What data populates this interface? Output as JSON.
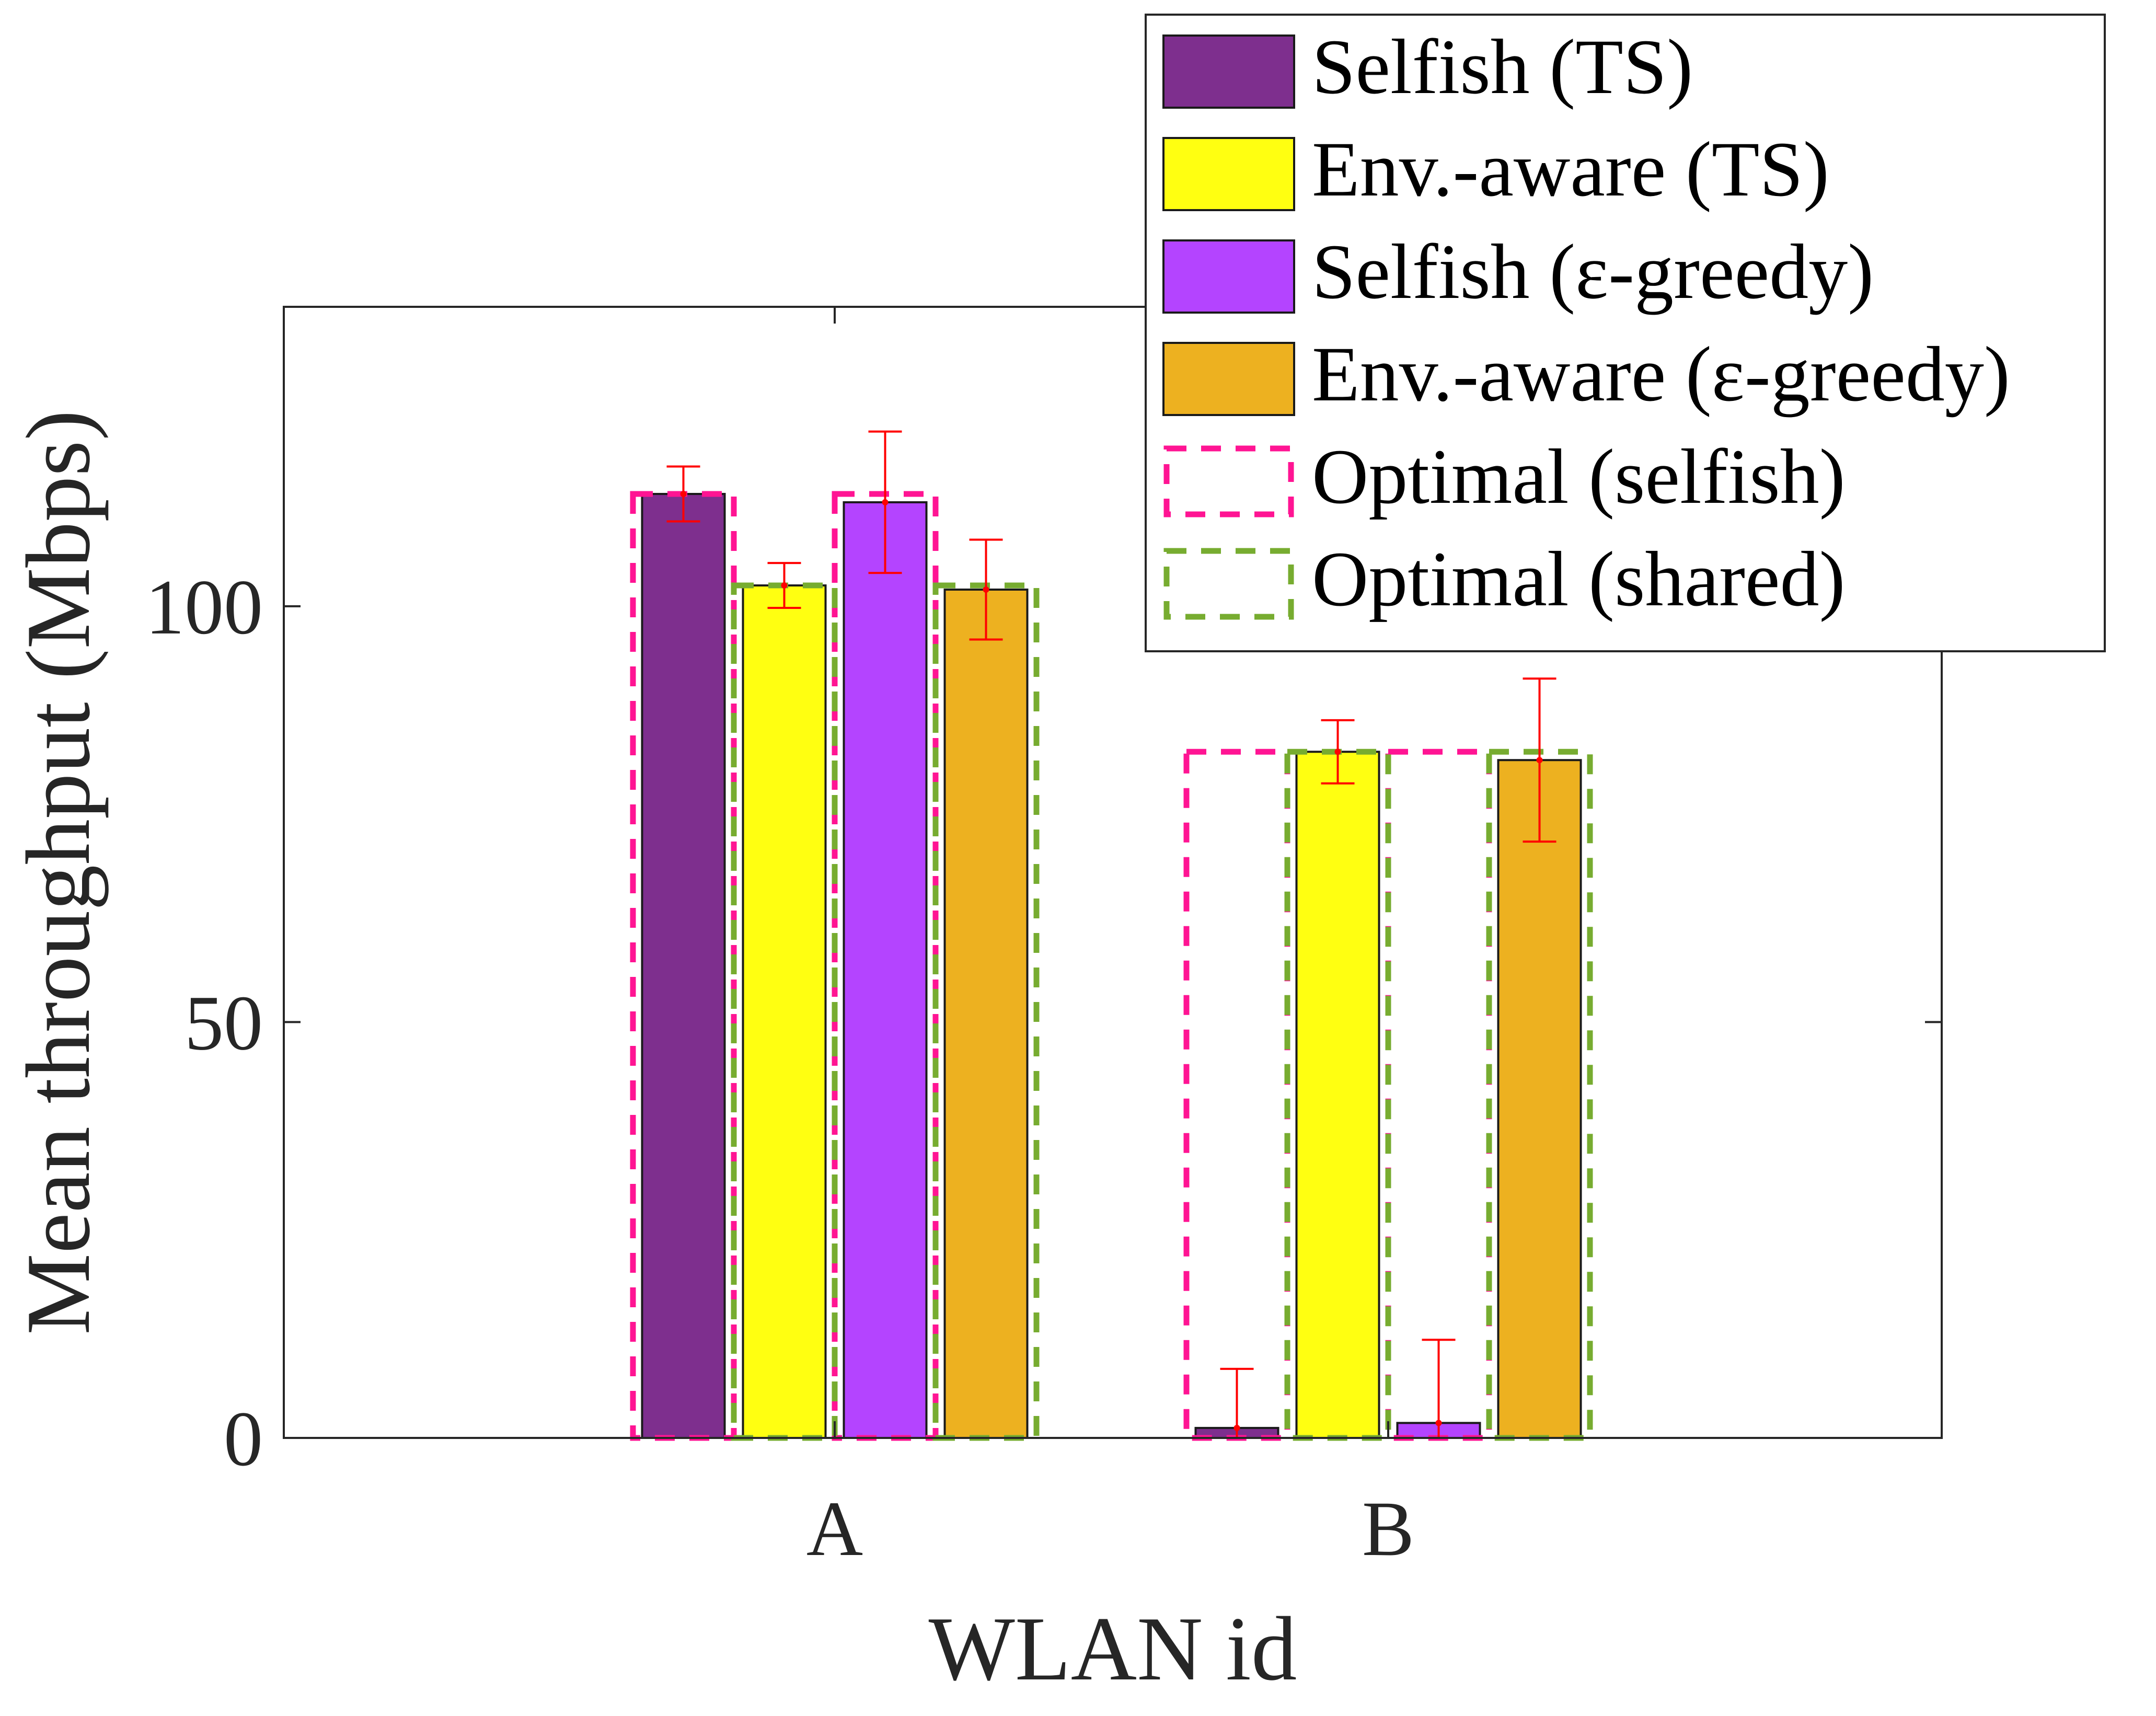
{
  "chart_data": {
    "type": "bar",
    "xlabel": "WLAN id",
    "ylabel": "Mean throughput (Mbps)",
    "categories": [
      "A",
      "B"
    ],
    "ylim": [
      0,
      136
    ],
    "yticks": [
      0,
      50,
      100
    ],
    "ytick_labels": [
      "0",
      "50",
      "100"
    ],
    "grid": false,
    "legend_position": "top-right",
    "series": [
      {
        "name": "Selfish (TS)",
        "color": "#7E2F8E",
        "values": [
          113.5,
          1.2
        ],
        "errors": [
          3.3,
          7.1
        ]
      },
      {
        "name": "Env.-aware (TS)",
        "color": "#FFFF11",
        "values": [
          102.5,
          82.5
        ],
        "errors": [
          2.7,
          3.8
        ]
      },
      {
        "name": "Selfish (ε-greedy)",
        "color": "#B444FF",
        "values": [
          112.5,
          1.8
        ],
        "errors": [
          8.5,
          10.0
        ]
      },
      {
        "name": "Env.-aware (ε-greedy)",
        "color": "#EDB120",
        "values": [
          102.0,
          81.5
        ],
        "errors": [
          6.0,
          9.8
        ]
      }
    ],
    "optimal": [
      {
        "name": "Optimal (selfish)",
        "color": "#FF1493",
        "values": [
          113.5,
          82.5
        ],
        "spans": [
          [
            0,
            0
          ],
          [
            2,
            2
          ]
        ]
      },
      {
        "name": "Optimal (shared)",
        "color": "#77AC30",
        "values": [
          102.5,
          82.5
        ],
        "spans": [
          [
            1,
            1
          ],
          [
            3,
            3
          ]
        ]
      }
    ],
    "legend": [
      {
        "label": "Selfish (TS)",
        "style": "fill",
        "color": "#7E2F8E"
      },
      {
        "label": "Env.-aware (TS)",
        "style": "fill",
        "color": "#FFFF11"
      },
      {
        "label": "Selfish (ε-greedy)",
        "style": "fill",
        "color": "#B444FF"
      },
      {
        "label": "Env.-aware (ε-greedy)",
        "style": "fill",
        "color": "#EDB120"
      },
      {
        "label": "Optimal (selfish)",
        "style": "dashed",
        "color": "#FF1493"
      },
      {
        "label": "Optimal (shared)",
        "style": "dashed",
        "color": "#77AC30"
      }
    ],
    "error_color": "#FF0000"
  }
}
